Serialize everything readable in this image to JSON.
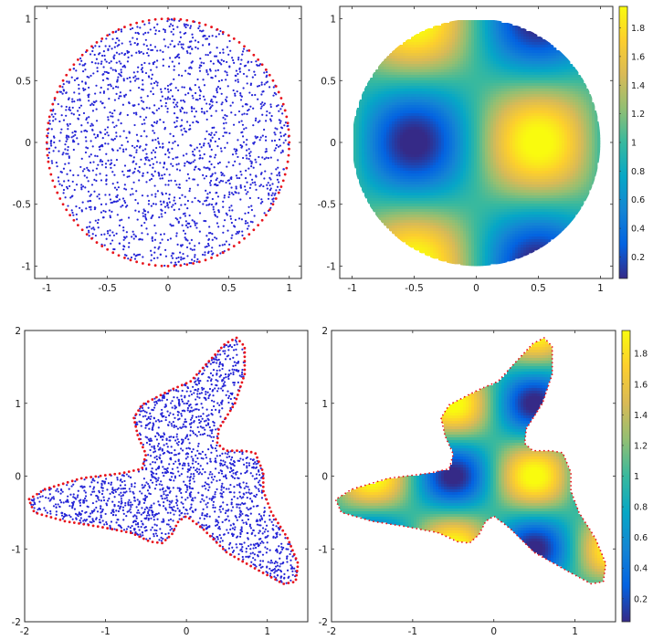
{
  "chart_data": [
    {
      "type": "scatter",
      "title": "",
      "xlabel": "",
      "ylabel": "",
      "xlim": [
        -1.1,
        1.1
      ],
      "ylim": [
        -1.1,
        1.1
      ],
      "xticks": [
        -1,
        -0.5,
        0,
        0.5,
        1
      ],
      "yticks": [
        -1,
        -0.5,
        0,
        0.5,
        1
      ],
      "xtick_labels": [
        "-1",
        "-0.5",
        "0",
        "0.5",
        "1"
      ],
      "ytick_labels": [
        "-1",
        "-0.5",
        "0",
        "0.5",
        "1"
      ],
      "domain": "unit-disk",
      "series": [
        {
          "role": "interior-nodes",
          "color": "#2525d6",
          "marker": "dot",
          "count_approx": 1800
        },
        {
          "role": "boundary-nodes",
          "color": "#e8141c",
          "marker": "dot",
          "count_approx": 120
        }
      ],
      "grid": false,
      "legend": "none"
    },
    {
      "type": "heatmap",
      "title": "",
      "xlabel": "",
      "ylabel": "",
      "xlim": [
        -1.1,
        1.1
      ],
      "ylim": [
        -1.1,
        1.1
      ],
      "xticks": [
        -1,
        -0.5,
        0,
        0.5,
        1
      ],
      "yticks": [
        -1,
        -0.5,
        0,
        0.5,
        1
      ],
      "xtick_labels": [
        "-1",
        "-0.5",
        "0",
        "0.5",
        "1"
      ],
      "ytick_labels": [
        "-1",
        "-0.5",
        "0",
        "0.5",
        "1"
      ],
      "domain": "unit-disk",
      "field": "1 + sin(pi*x)*cos(pi*y)",
      "colormap": "parula",
      "colorbar": {
        "range": [
          0.05,
          1.95
        ],
        "ticks": [
          0.2,
          0.4,
          0.6,
          0.8,
          1,
          1.2,
          1.4,
          1.6,
          1.8
        ],
        "tick_labels": [
          "0.2",
          "0.4",
          "0.6",
          "0.8",
          "1",
          "1.2",
          "1.4",
          "1.6",
          "1.8"
        ]
      },
      "grid": false,
      "legend": "none"
    },
    {
      "type": "scatter",
      "title": "",
      "xlabel": "",
      "ylabel": "",
      "xlim": [
        -2,
        1.5
      ],
      "ylim": [
        -2,
        2
      ],
      "xticks": [
        -2,
        -1,
        0,
        1
      ],
      "yticks": [
        -2,
        -1,
        0,
        1,
        2
      ],
      "xtick_labels": [
        "-2",
        "-1",
        "0",
        "1"
      ],
      "ytick_labels": [
        "-2",
        "-1",
        "0",
        "1",
        "2"
      ],
      "domain": "three-lobed-star",
      "series": [
        {
          "role": "interior-nodes",
          "color": "#2525d6",
          "marker": "dot",
          "count_approx": 1800
        },
        {
          "role": "boundary-nodes",
          "color": "#e8141c",
          "marker": "dot",
          "count_approx": 200
        }
      ],
      "grid": false,
      "legend": "none"
    },
    {
      "type": "heatmap",
      "title": "",
      "xlabel": "",
      "ylabel": "",
      "xlim": [
        -2,
        1.5
      ],
      "ylim": [
        -2,
        2
      ],
      "xticks": [
        -2,
        -1,
        0,
        1
      ],
      "yticks": [
        -2,
        -1,
        0,
        1,
        2
      ],
      "xtick_labels": [
        "-2",
        "-1",
        "0",
        "1"
      ],
      "ytick_labels": [
        "-2",
        "-1",
        "0",
        "1",
        "2"
      ],
      "domain": "three-lobed-star",
      "field": "1 + sin(pi*x)*cos(pi*y)",
      "colormap": "parula",
      "boundary_color": "#e8141c",
      "colorbar": {
        "range": [
          0.05,
          1.95
        ],
        "ticks": [
          0.2,
          0.4,
          0.6,
          0.8,
          1,
          1.2,
          1.4,
          1.6,
          1.8
        ],
        "tick_labels": [
          "0.2",
          "0.4",
          "0.6",
          "0.8",
          "1",
          "1.2",
          "1.4",
          "1.6",
          "1.8"
        ]
      },
      "grid": false,
      "legend": "none"
    }
  ]
}
